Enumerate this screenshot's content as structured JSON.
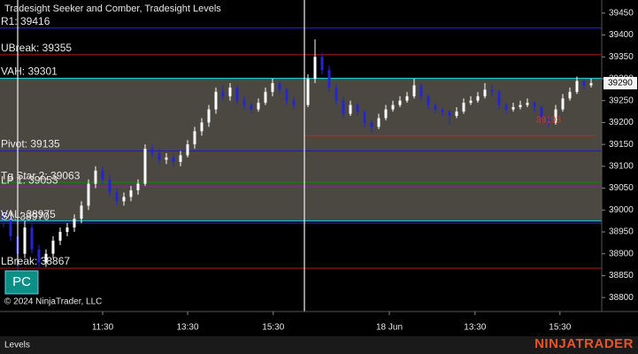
{
  "chart_data": {
    "type": "candlestick",
    "title": "Tradesight Seeker and Comber, Tradesight Levels",
    "watermark": "© 2024 NinjaTrader, LLC",
    "button_label": "PC",
    "tab_label": "Levels",
    "logo": "NINJATRADER",
    "up_color": "#ffffff",
    "down_color": "#2424d0",
    "ylim": [
      38768,
      39480
    ],
    "yticks": [
      39450,
      39400,
      39350,
      39300,
      39250,
      39200,
      39150,
      39100,
      39050,
      39000,
      38950,
      38900,
      38850,
      38800
    ],
    "xlim": [
      0,
      85
    ],
    "xticks": [
      {
        "value": 14.5,
        "label": "11:30"
      },
      {
        "value": 26.5,
        "label": "13:30"
      },
      {
        "value": 38.6,
        "label": "15:30"
      },
      {
        "value": 55,
        "label": "18 Jun"
      },
      {
        "value": 67.1,
        "label": "13:30"
      },
      {
        "value": 79.1,
        "label": "15:30"
      }
    ],
    "open": [
      38990,
      38980,
      38940,
      38900,
      38960,
      38910,
      38880,
      38900,
      38930,
      38950,
      38960,
      38980,
      39010,
      39060,
      39090,
      39070,
      39040,
      39020,
      39030,
      39045,
      39060,
      39140,
      39130,
      39115,
      39120,
      39110,
      39125,
      39150,
      39180,
      39200,
      39230,
      39270,
      39260,
      39280,
      39250,
      39240,
      39230,
      39245,
      39270,
      39290,
      39275,
      39250,
      null,
      39240,
      39300,
      39350,
      39320,
      39280,
      39250,
      39220,
      39240,
      39225,
      39200,
      39190,
      39210,
      39230,
      39240,
      39250,
      39260,
      39285,
      39260,
      39240,
      39230,
      39225,
      39215,
      39225,
      39245,
      39250,
      39260,
      39275,
      39270,
      39240,
      39230,
      39235,
      39240,
      39245,
      39235,
      39210,
      39200,
      39230,
      39255,
      39270,
      39295,
      39285
    ],
    "high": [
      39000,
      38990,
      38950,
      38975,
      38970,
      38920,
      38910,
      38940,
      38960,
      38970,
      38990,
      39020,
      39070,
      39100,
      39100,
      39080,
      39050,
      39040,
      39055,
      39070,
      39150,
      39150,
      39140,
      39130,
      39130,
      39135,
      39160,
      39190,
      39210,
      39240,
      39280,
      39285,
      39290,
      39285,
      39260,
      39245,
      39255,
      39280,
      39300,
      39295,
      39280,
      39260,
      null,
      39310,
      39390,
      39360,
      39330,
      39290,
      39260,
      39250,
      39245,
      39230,
      39205,
      39220,
      39240,
      39250,
      39260,
      39270,
      39300,
      39290,
      39265,
      39245,
      39235,
      39230,
      39235,
      39255,
      39260,
      39270,
      39290,
      39285,
      39275,
      39245,
      39245,
      39250,
      39255,
      39250,
      39240,
      39215,
      39240,
      39265,
      39280,
      39305,
      39300,
      39300
    ],
    "low": [
      38960,
      38930,
      38860,
      38890,
      38900,
      38870,
      38870,
      38890,
      38920,
      38940,
      38950,
      38970,
      39000,
      39050,
      39060,
      39030,
      39010,
      39010,
      39020,
      39035,
      39055,
      39120,
      39105,
      39105,
      39100,
      39100,
      39120,
      39140,
      39170,
      39190,
      39220,
      39250,
      39250,
      39240,
      39230,
      39220,
      39225,
      39240,
      39260,
      39265,
      39240,
      39230,
      null,
      39235,
      39290,
      39310,
      39270,
      39240,
      39210,
      39215,
      39215,
      39190,
      39175,
      39185,
      39205,
      39225,
      39235,
      39245,
      39255,
      39250,
      39230,
      39220,
      39215,
      39195,
      39210,
      39220,
      39240,
      39245,
      39255,
      39260,
      39230,
      39220,
      39225,
      39230,
      39235,
      39225,
      39200,
      39190,
      39195,
      39225,
      39250,
      39265,
      39275,
      39280
    ],
    "close": [
      38980,
      38940,
      38900,
      38960,
      38910,
      38880,
      38900,
      38930,
      38950,
      38960,
      38980,
      39010,
      39060,
      39090,
      39070,
      39040,
      39020,
      39030,
      39045,
      39060,
      39140,
      39130,
      39115,
      39120,
      39110,
      39125,
      39150,
      39180,
      39200,
      39230,
      39270,
      39260,
      39280,
      39250,
      39240,
      39230,
      39245,
      39270,
      39290,
      39275,
      39250,
      39240,
      null,
      39300,
      39350,
      39320,
      39280,
      39250,
      39220,
      39240,
      39225,
      39200,
      39190,
      39210,
      39230,
      39240,
      39250,
      39260,
      39285,
      39260,
      39240,
      39230,
      39225,
      39215,
      39225,
      39245,
      39250,
      39260,
      39275,
      39270,
      39240,
      39230,
      39235,
      39240,
      39245,
      39235,
      39210,
      39200,
      39230,
      39255,
      39270,
      39295,
      39285,
      39290
    ],
    "value_area": {
      "from": 39301,
      "to": 38975,
      "color": "#4a4840"
    },
    "levels": [
      {
        "label": "R1: 39416",
        "value": 39416,
        "color": "#2020b0"
      },
      {
        "label": "UBreak: 39355",
        "value": 39355,
        "color": "#a01818"
      },
      {
        "label": "VAH: 39301",
        "value": 39301,
        "color": "#20c8c8"
      },
      {
        "label": "Pivot: 39135",
        "value": 39135,
        "color": "#2020b0"
      },
      {
        "label": "Tg Star 2: 39063",
        "value": 39063,
        "color": "#1c7a1c"
      },
      {
        "label": "LP 1: 39053",
        "value": 39053,
        "color": "#7a2a8a"
      },
      {
        "label": "VAL: 38975",
        "value": 38975,
        "color": "#20c8c8"
      },
      {
        "label": "S1: 38970",
        "value": 38970,
        "color": "#2020b0"
      },
      {
        "label": "LBreak: 38867",
        "value": 38867,
        "color": "#a01818"
      }
    ],
    "stop_line": {
      "value": 39170,
      "xlim": [
        43,
        84
      ],
      "color": "#d02020"
    },
    "annotations": [
      {
        "text": "39193",
        "x": 77.5,
        "y": 39193,
        "color": "#e03030"
      }
    ]
  }
}
